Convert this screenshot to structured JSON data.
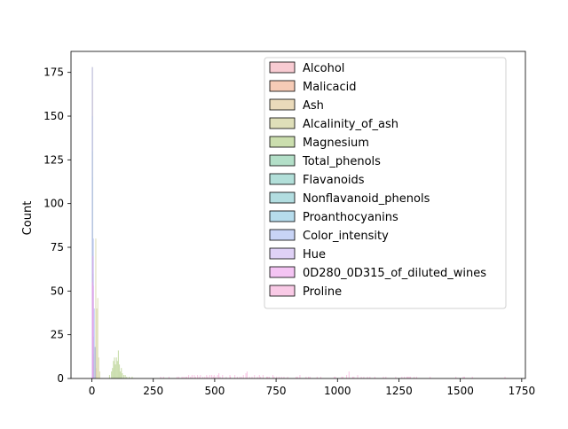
{
  "chart_data": {
    "type": "histogram",
    "xlabel": "",
    "ylabel": "Count",
    "xlim": [
      -85,
      1765
    ],
    "ylim": [
      0,
      187
    ],
    "xticks": [
      0,
      250,
      500,
      750,
      1000,
      1250,
      1500,
      1750
    ],
    "yticks": [
      0,
      25,
      50,
      75,
      100,
      125,
      150,
      175
    ],
    "legend_position": "upper right",
    "bin_width": 4,
    "series": [
      {
        "name": "Alcohol",
        "color": "#f3a9b4",
        "bins": [
          [
            12,
            18
          ],
          [
            14,
            6
          ]
        ]
      },
      {
        "name": "Malicacid",
        "color": "#f0a985",
        "bins": [
          [
            0,
            165
          ],
          [
            4,
            8
          ],
          [
            2,
            6
          ]
        ]
      },
      {
        "name": "Ash",
        "color": "#dcc28c",
        "bins": [
          [
            0,
            178
          ],
          [
            2,
            12
          ]
        ]
      },
      {
        "name": "Alcalinity_of_ash",
        "color": "#c9c98b",
        "bins": [
          [
            10,
            18
          ],
          [
            14,
            80
          ],
          [
            18,
            40
          ],
          [
            22,
            46
          ],
          [
            26,
            12
          ],
          [
            30,
            4
          ]
        ]
      },
      {
        "name": "Magnesium",
        "color": "#a8c878",
        "bins": [
          [
            70,
            2
          ],
          [
            78,
            4
          ],
          [
            82,
            6
          ],
          [
            86,
            10
          ],
          [
            90,
            12
          ],
          [
            94,
            8
          ],
          [
            98,
            12
          ],
          [
            102,
            10
          ],
          [
            106,
            16
          ],
          [
            110,
            8
          ],
          [
            114,
            4
          ],
          [
            118,
            6
          ],
          [
            122,
            3
          ],
          [
            128,
            2
          ],
          [
            134,
            2
          ],
          [
            140,
            1
          ],
          [
            150,
            1
          ],
          [
            162,
            1
          ]
        ]
      },
      {
        "name": "Total_phenols",
        "color": "#80c9a3",
        "bins": [
          [
            0,
            130
          ],
          [
            2,
            60
          ],
          [
            4,
            24
          ]
        ]
      },
      {
        "name": "Flavanoids",
        "color": "#7fcac0",
        "bins": [
          [
            0,
            115
          ],
          [
            2,
            50
          ],
          [
            4,
            14
          ]
        ]
      },
      {
        "name": "Nonflavanoid_phenols",
        "color": "#7fc6cc",
        "bins": [
          [
            0,
            178
          ]
        ]
      },
      {
        "name": "Proanthocyanins",
        "color": "#86c4e0",
        "bins": [
          [
            0,
            150
          ],
          [
            2,
            28
          ]
        ]
      },
      {
        "name": "Color_intensity",
        "color": "#a3b8f0",
        "bins": [
          [
            0,
            40
          ],
          [
            4,
            80
          ],
          [
            8,
            40
          ],
          [
            12,
            18
          ]
        ]
      },
      {
        "name": "Hue",
        "color": "#c9b3f0",
        "bins": [
          [
            0,
            178
          ]
        ]
      },
      {
        "name": "0D280_0D315_of_diluted_wines",
        "color": "#ec9ceb",
        "bins": [
          [
            0,
            55
          ],
          [
            2,
            70
          ],
          [
            4,
            53
          ]
        ]
      },
      {
        "name": "Proline",
        "color": "#f5a7d6",
        "bins": [
          [
            278,
            1
          ],
          [
            290,
            1
          ],
          [
            312,
            1
          ],
          [
            345,
            1
          ],
          [
            352,
            1
          ],
          [
            365,
            1
          ],
          [
            372,
            1
          ],
          [
            380,
            1
          ],
          [
            385,
            1
          ],
          [
            392,
            2
          ],
          [
            400,
            1
          ],
          [
            406,
            2
          ],
          [
            415,
            2
          ],
          [
            420,
            1
          ],
          [
            428,
            2
          ],
          [
            434,
            1
          ],
          [
            440,
            2
          ],
          [
            450,
            1
          ],
          [
            458,
            1
          ],
          [
            465,
            2
          ],
          [
            470,
            1
          ],
          [
            478,
            2
          ],
          [
            486,
            2
          ],
          [
            492,
            1
          ],
          [
            496,
            2
          ],
          [
            502,
            1
          ],
          [
            510,
            2
          ],
          [
            515,
            3
          ],
          [
            520,
            1
          ],
          [
            530,
            2
          ],
          [
            545,
            1
          ],
          [
            560,
            2
          ],
          [
            562,
            1
          ],
          [
            580,
            2
          ],
          [
            590,
            1
          ],
          [
            600,
            1
          ],
          [
            607,
            1
          ],
          [
            615,
            2
          ],
          [
            625,
            3
          ],
          [
            630,
            4
          ],
          [
            640,
            1
          ],
          [
            650,
            1
          ],
          [
            660,
            2
          ],
          [
            672,
            1
          ],
          [
            680,
            2
          ],
          [
            685,
            1
          ],
          [
            695,
            2
          ],
          [
            710,
            1
          ],
          [
            714,
            1
          ],
          [
            720,
            1
          ],
          [
            735,
            2
          ],
          [
            740,
            1
          ],
          [
            750,
            1
          ],
          [
            760,
            1
          ],
          [
            770,
            1
          ],
          [
            780,
            1
          ],
          [
            795,
            1
          ],
          [
            830,
            1
          ],
          [
            835,
            1
          ],
          [
            845,
            2
          ],
          [
            870,
            1
          ],
          [
            880,
            1
          ],
          [
            886,
            1
          ],
          [
            915,
            1
          ],
          [
            930,
            1
          ],
          [
            985,
            1
          ],
          [
            990,
            1
          ],
          [
            1015,
            1
          ],
          [
            1020,
            1
          ],
          [
            1035,
            2
          ],
          [
            1045,
            4
          ],
          [
            1060,
            1
          ],
          [
            1065,
            1
          ],
          [
            1080,
            2
          ],
          [
            1095,
            1
          ],
          [
            1105,
            1
          ],
          [
            1120,
            1
          ],
          [
            1130,
            1
          ],
          [
            1150,
            1
          ],
          [
            1185,
            1
          ],
          [
            1195,
            1
          ],
          [
            1235,
            1
          ],
          [
            1260,
            1
          ],
          [
            1270,
            1
          ],
          [
            1280,
            1
          ],
          [
            1285,
            1
          ],
          [
            1290,
            1
          ],
          [
            1295,
            1
          ],
          [
            1310,
            1
          ],
          [
            1320,
            1
          ],
          [
            1375,
            1
          ],
          [
            1480,
            1
          ],
          [
            1510,
            1
          ],
          [
            1515,
            1
          ],
          [
            1547,
            1
          ],
          [
            1680,
            1
          ]
        ]
      }
    ]
  }
}
